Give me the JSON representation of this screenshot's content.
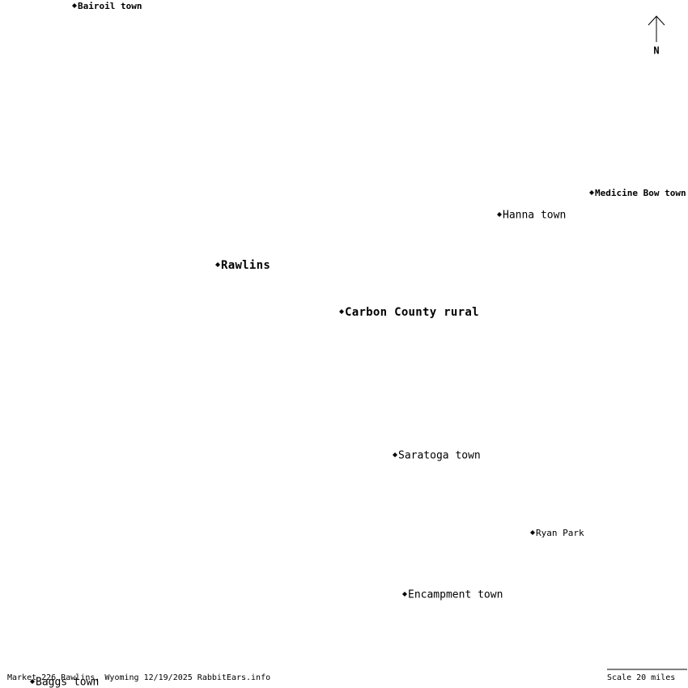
{
  "places": [
    {
      "label": "Bairoil town"
    },
    {
      "label": "Medicine Bow town"
    },
    {
      "label": "Hanna town"
    },
    {
      "label": "Rawlins"
    },
    {
      "label": "Carbon County rural"
    },
    {
      "label": "Saratoga town"
    },
    {
      "label": "Ryan Park"
    },
    {
      "label": "Encampment town"
    },
    {
      "label": "Baggs town"
    }
  ],
  "compass": "N",
  "footer": "Market 226 Rawlins, Wyoming 12/19/2025 RabbitEars.info",
  "scale": "Scale 20 miles"
}
